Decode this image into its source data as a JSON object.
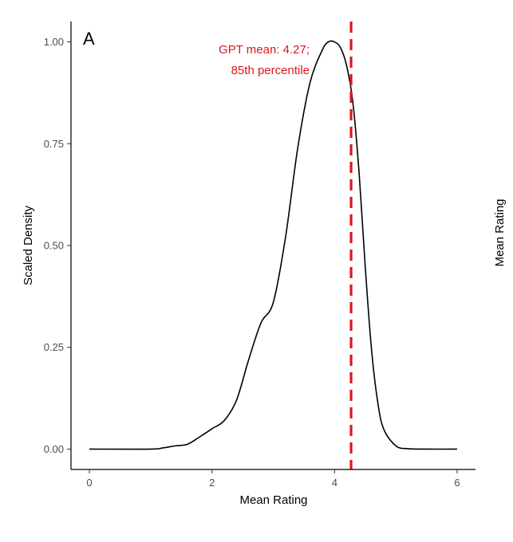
{
  "chart_data": {
    "type": "line",
    "panel_label": "A",
    "xlabel": "Mean Rating",
    "ylabel": "Scaled Density",
    "xlim": [
      -0.3,
      6.3
    ],
    "ylim": [
      -0.05,
      1.05
    ],
    "x_ticks": [
      0,
      2,
      4,
      6
    ],
    "y_ticks": [
      0.0,
      0.25,
      0.5,
      0.75,
      1.0
    ],
    "y_tick_labels": [
      "0.00",
      "0.25",
      "0.50",
      "0.75",
      "1.00"
    ],
    "grid": false,
    "series": [
      {
        "color": "#000000",
        "x": [
          0,
          1.0,
          1.2,
          1.4,
          1.6,
          1.8,
          2.0,
          2.2,
          2.4,
          2.6,
          2.8,
          3.0,
          3.2,
          3.4,
          3.6,
          3.8,
          3.9,
          4.0,
          4.1,
          4.2,
          4.3,
          4.4,
          4.5,
          4.6,
          4.7,
          4.8,
          5.0,
          5.2,
          5.5,
          6.0
        ],
        "y": [
          0,
          0,
          0.003,
          0.008,
          0.012,
          0.03,
          0.05,
          0.07,
          0.12,
          0.22,
          0.31,
          0.36,
          0.52,
          0.74,
          0.9,
          0.98,
          1.0,
          1.0,
          0.985,
          0.94,
          0.85,
          0.68,
          0.45,
          0.25,
          0.12,
          0.05,
          0.008,
          0.001,
          0,
          0
        ]
      }
    ],
    "reference_line": {
      "x": 4.27,
      "color": "#d7191c",
      "style": "dashed",
      "label_line1": "GPT mean: 4.27;",
      "label_line2": "85th percentile"
    },
    "clipped_neighbor_ylabel": "Mean Rating"
  }
}
